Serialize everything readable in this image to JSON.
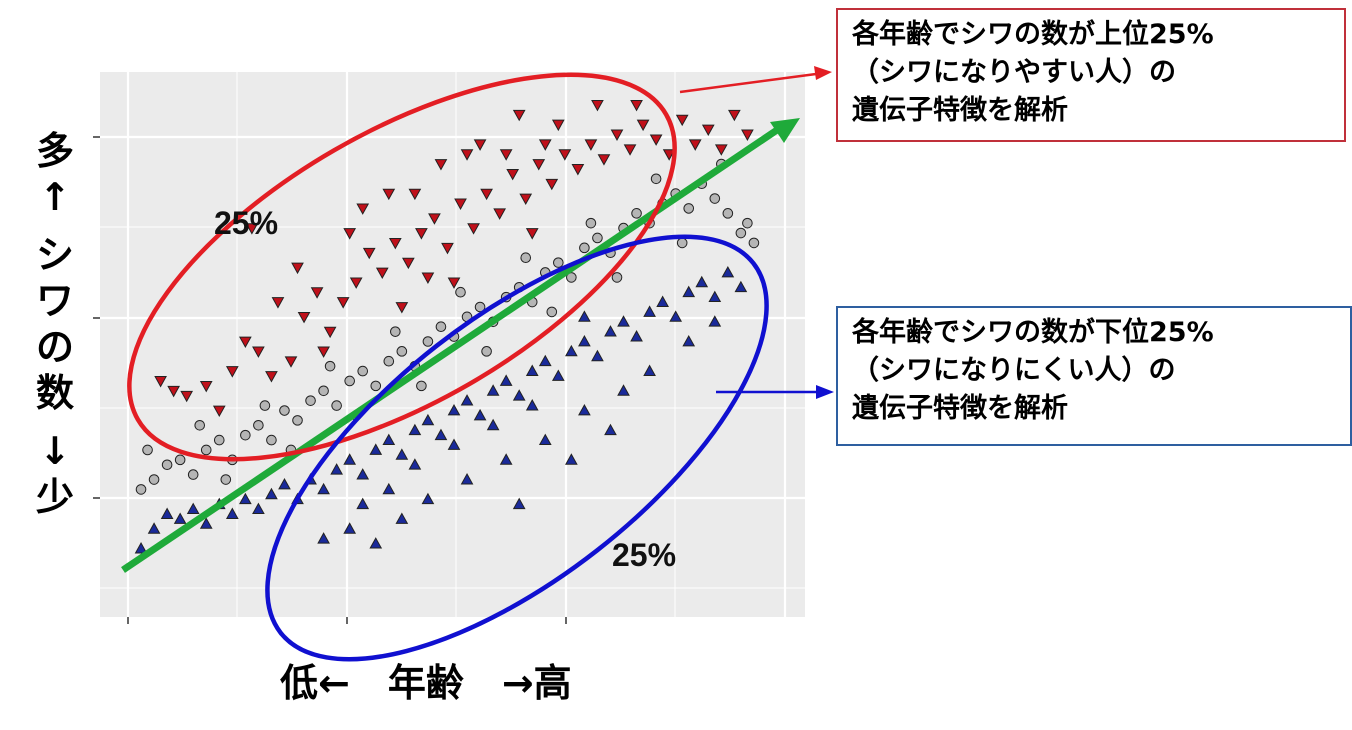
{
  "chart_data": {
    "type": "scatter",
    "xlim": [
      0,
      100
    ],
    "ylim": [
      0,
      100
    ],
    "grid": true,
    "xlabel": "低←　年齢　→高",
    "ylabel": [
      "多",
      "↑",
      "シ",
      "ワ",
      "の",
      "数",
      "↓",
      "少"
    ],
    "series": [
      {
        "marker": "triangle-down",
        "color": "#c0101a",
        "points": [
          [
            5,
            42
          ],
          [
            7,
            40
          ],
          [
            9,
            39
          ],
          [
            12,
            41
          ],
          [
            14,
            36
          ],
          [
            16,
            44
          ],
          [
            18,
            50
          ],
          [
            20,
            48
          ],
          [
            22,
            43
          ],
          [
            25,
            46
          ],
          [
            27,
            55
          ],
          [
            29,
            60
          ],
          [
            31,
            52
          ],
          [
            33,
            58
          ],
          [
            35,
            62
          ],
          [
            37,
            68
          ],
          [
            39,
            64
          ],
          [
            41,
            70
          ],
          [
            43,
            66
          ],
          [
            45,
            72
          ],
          [
            47,
            75
          ],
          [
            49,
            69
          ],
          [
            51,
            78
          ],
          [
            53,
            73
          ],
          [
            55,
            80
          ],
          [
            57,
            76
          ],
          [
            59,
            84
          ],
          [
            61,
            79
          ],
          [
            63,
            86
          ],
          [
            65,
            82
          ],
          [
            67,
            88
          ],
          [
            69,
            85
          ],
          [
            71,
            90
          ],
          [
            73,
            87
          ],
          [
            75,
            92
          ],
          [
            77,
            89
          ],
          [
            79,
            94
          ],
          [
            81,
            91
          ],
          [
            83,
            88
          ],
          [
            85,
            95
          ],
          [
            87,
            90
          ],
          [
            89,
            93
          ],
          [
            91,
            89
          ],
          [
            93,
            96
          ],
          [
            95,
            92
          ],
          [
            19,
            73
          ],
          [
            40,
            80
          ],
          [
            48,
            86
          ],
          [
            54,
            90
          ],
          [
            60,
            96
          ],
          [
            72,
            98
          ],
          [
            23,
            58
          ],
          [
            34,
            72
          ],
          [
            44,
            80
          ],
          [
            58,
            88
          ],
          [
            66,
            94
          ],
          [
            78,
            98
          ],
          [
            30,
            48
          ],
          [
            42,
            57
          ],
          [
            50,
            62
          ],
          [
            62,
            72
          ],
          [
            52,
            88
          ],
          [
            64,
            90
          ],
          [
            36,
            77
          ],
          [
            26,
            65
          ],
          [
            46,
            63
          ]
        ]
      },
      {
        "marker": "circle",
        "color": "#b5b5b5",
        "points": [
          [
            2,
            20
          ],
          [
            4,
            22
          ],
          [
            6,
            25
          ],
          [
            8,
            26
          ],
          [
            10,
            23
          ],
          [
            12,
            28
          ],
          [
            14,
            30
          ],
          [
            16,
            26
          ],
          [
            18,
            31
          ],
          [
            20,
            33
          ],
          [
            22,
            30
          ],
          [
            24,
            36
          ],
          [
            26,
            34
          ],
          [
            28,
            38
          ],
          [
            30,
            40
          ],
          [
            32,
            37
          ],
          [
            34,
            42
          ],
          [
            36,
            44
          ],
          [
            38,
            41
          ],
          [
            40,
            46
          ],
          [
            42,
            48
          ],
          [
            44,
            45
          ],
          [
            46,
            50
          ],
          [
            48,
            53
          ],
          [
            50,
            51
          ],
          [
            52,
            55
          ],
          [
            54,
            57
          ],
          [
            56,
            54
          ],
          [
            58,
            59
          ],
          [
            60,
            61
          ],
          [
            62,
            58
          ],
          [
            64,
            64
          ],
          [
            66,
            66
          ],
          [
            68,
            63
          ],
          [
            70,
            69
          ],
          [
            72,
            71
          ],
          [
            74,
            68
          ],
          [
            76,
            73
          ],
          [
            78,
            76
          ],
          [
            80,
            74
          ],
          [
            82,
            78
          ],
          [
            84,
            80
          ],
          [
            86,
            77
          ],
          [
            88,
            82
          ],
          [
            90,
            79
          ],
          [
            92,
            76
          ],
          [
            94,
            72
          ],
          [
            96,
            70
          ],
          [
            3,
            28
          ],
          [
            11,
            33
          ],
          [
            21,
            37
          ],
          [
            31,
            45
          ],
          [
            41,
            52
          ],
          [
            51,
            60
          ],
          [
            61,
            67
          ],
          [
            71,
            74
          ],
          [
            81,
            83
          ],
          [
            91,
            86
          ],
          [
            15,
            22
          ],
          [
            25,
            28
          ],
          [
            35,
            35
          ],
          [
            45,
            41
          ],
          [
            55,
            48
          ],
          [
            65,
            56
          ],
          [
            75,
            63
          ],
          [
            85,
            70
          ],
          [
            95,
            74
          ]
        ]
      },
      {
        "marker": "triangle-up",
        "color": "#1a2a9a",
        "points": [
          [
            2,
            8
          ],
          [
            4,
            12
          ],
          [
            6,
            15
          ],
          [
            8,
            14
          ],
          [
            10,
            16
          ],
          [
            12,
            13
          ],
          [
            14,
            17
          ],
          [
            16,
            15
          ],
          [
            18,
            18
          ],
          [
            20,
            16
          ],
          [
            22,
            19
          ],
          [
            24,
            21
          ],
          [
            26,
            18
          ],
          [
            28,
            22
          ],
          [
            30,
            20
          ],
          [
            32,
            24
          ],
          [
            34,
            26
          ],
          [
            36,
            23
          ],
          [
            38,
            28
          ],
          [
            40,
            30
          ],
          [
            42,
            27
          ],
          [
            44,
            32
          ],
          [
            46,
            34
          ],
          [
            48,
            31
          ],
          [
            50,
            36
          ],
          [
            52,
            38
          ],
          [
            54,
            35
          ],
          [
            56,
            40
          ],
          [
            58,
            42
          ],
          [
            60,
            39
          ],
          [
            62,
            44
          ],
          [
            64,
            46
          ],
          [
            66,
            43
          ],
          [
            68,
            48
          ],
          [
            70,
            50
          ],
          [
            72,
            47
          ],
          [
            74,
            52
          ],
          [
            76,
            54
          ],
          [
            78,
            51
          ],
          [
            80,
            56
          ],
          [
            82,
            58
          ],
          [
            84,
            55
          ],
          [
            86,
            60
          ],
          [
            88,
            62
          ],
          [
            90,
            59
          ],
          [
            92,
            64
          ],
          [
            94,
            61
          ],
          [
            30,
            10
          ],
          [
            34,
            12
          ],
          [
            38,
            9
          ],
          [
            42,
            14
          ],
          [
            46,
            18
          ],
          [
            52,
            22
          ],
          [
            58,
            26
          ],
          [
            64,
            30
          ],
          [
            70,
            36
          ],
          [
            76,
            40
          ],
          [
            60,
            17
          ],
          [
            68,
            26
          ],
          [
            74,
            32
          ],
          [
            80,
            44
          ],
          [
            86,
            50
          ],
          [
            44,
            25
          ],
          [
            50,
            29
          ],
          [
            56,
            33
          ],
          [
            62,
            37
          ],
          [
            40,
            20
          ],
          [
            36,
            17
          ],
          [
            90,
            54
          ],
          [
            70,
            55
          ]
        ]
      }
    ],
    "annotations": [
      "25%",
      "25%"
    ]
  },
  "callouts": {
    "top": {
      "lines": [
        "各年齢でシワの数が上位25%",
        "（シワになりやすい人）の",
        "遺伝子特徴を解析"
      ]
    },
    "bottom": {
      "lines": [
        "各年齢でシワの数が下位25%",
        "（シワになりにくい人）の",
        "遺伝子特徴を解析"
      ]
    }
  },
  "colors": {
    "panel": "#ebebeb",
    "grid": "#ffffff",
    "top_highlight": "#e31e24",
    "bottom_highlight": "#1010d0",
    "trend": "#1faa3a",
    "callout_top_border": "#c0303a",
    "callout_bottom_border": "#2e5fa0"
  }
}
